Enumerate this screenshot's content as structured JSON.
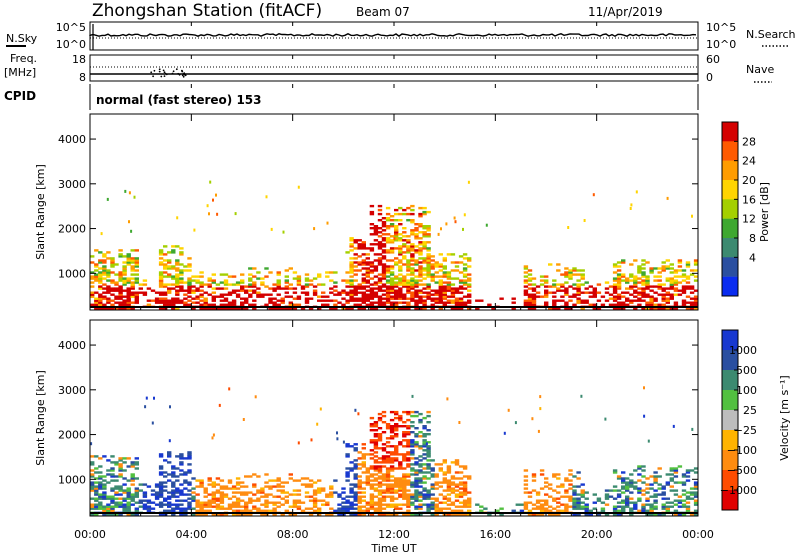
{
  "header": {
    "station": "Zhongshan Station (fitACF)",
    "beam": "Beam 07",
    "date": "11/Apr/2019"
  },
  "panels": {
    "nsky_label": "N.Sky",
    "nsky_ticks": [
      "10^5",
      "10^0"
    ],
    "nsearch_label": "N.Search",
    "nsearch_ticks": [
      "10^5",
      "10^0"
    ],
    "freq_label_1": "Freq.",
    "freq_label_2": "[MHz]",
    "freq_ticks": [
      "18",
      "8"
    ],
    "nave_label": "Nave",
    "nave_ticks": [
      "60",
      "0"
    ],
    "cpid_label": "CPID",
    "cpid_text": "normal (fast stereo) 153"
  },
  "chart_data": [
    {
      "type": "heatmap",
      "name": "power",
      "ylabel": "Slant Range [km]",
      "y_ticks": [
        "4000",
        "3000",
        "2000",
        "1000"
      ],
      "ylim": [
        180,
        4560
      ],
      "xlim_hours": [
        0,
        24
      ],
      "colorbar_label": "Power [dB]",
      "colorbar_ticks": [
        "28",
        "24",
        "20",
        "16",
        "12",
        "8",
        "4"
      ],
      "colorbar_colors": [
        "#d40000",
        "#ff5a00",
        "#ff9c00",
        "#ffd400",
        "#a4d000",
        "#3ea830",
        "#3c8a70",
        "#2a4fa0",
        "#0a2cf0"
      ]
    },
    {
      "type": "heatmap",
      "name": "velocity",
      "ylabel": "Slant Range [km]",
      "y_ticks": [
        "4000",
        "3000",
        "2000",
        "1000"
      ],
      "ylim": [
        180,
        4560
      ],
      "xlim_hours": [
        0,
        24
      ],
      "colorbar_label": "Velocity [m s⁻¹]",
      "colorbar_ticks": [
        "1000",
        "500",
        "100",
        "25",
        "−25",
        "−100",
        "−500",
        "−1000"
      ],
      "colorbar_colors": [
        "#1838d0",
        "#2a4fa0",
        "#3c8a70",
        "#52c040",
        "#bdbdbd",
        "#ffb400",
        "#ff8c10",
        "#ff4c00",
        "#e00000"
      ]
    }
  ],
  "xaxis": {
    "ticks": [
      "00:00",
      "04:00",
      "08:00",
      "12:00",
      "16:00",
      "20:00",
      "00:00"
    ],
    "label": "Time UT"
  }
}
